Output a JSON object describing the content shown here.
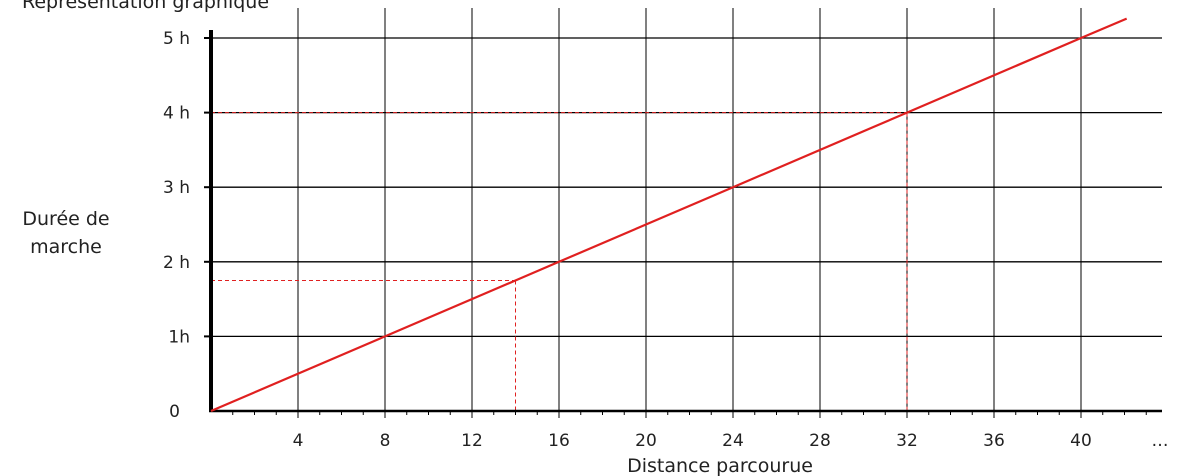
{
  "page": {
    "title_fragment": "Représentation graphique"
  },
  "chart_data": {
    "type": "line",
    "title": "",
    "xlabel": "Distance parcourue",
    "ylabel_lines": [
      "Durée de",
      "marche"
    ],
    "xlim": [
      0,
      44
    ],
    "ylim": [
      0,
      5
    ],
    "x_ticks": [
      4,
      8,
      12,
      16,
      20,
      24,
      28,
      32,
      36,
      40
    ],
    "x_tick_labels": [
      "4",
      "8",
      "12",
      "16",
      "20",
      "24",
      "28",
      "32",
      "36",
      "40"
    ],
    "x_ellipsis": "…",
    "y_ticks": [
      0,
      1,
      2,
      3,
      4,
      5
    ],
    "y_tick_labels": [
      "0",
      "1h",
      "2 h",
      "3 h",
      "4 h",
      "5 h"
    ],
    "grid": true,
    "series": [
      {
        "color": "#e02020",
        "x": [
          0,
          8,
          16,
          24,
          32,
          40,
          42.1
        ],
        "y": [
          0,
          1,
          2,
          3,
          4,
          5,
          5.26
        ]
      }
    ],
    "guides": [
      {
        "x": 14,
        "y": 1.75
      },
      {
        "x": 32,
        "y": 4
      }
    ],
    "colors": {
      "line": "#e02020",
      "guides": "#e02020",
      "grid": "#000000",
      "axes": "#000000"
    }
  }
}
